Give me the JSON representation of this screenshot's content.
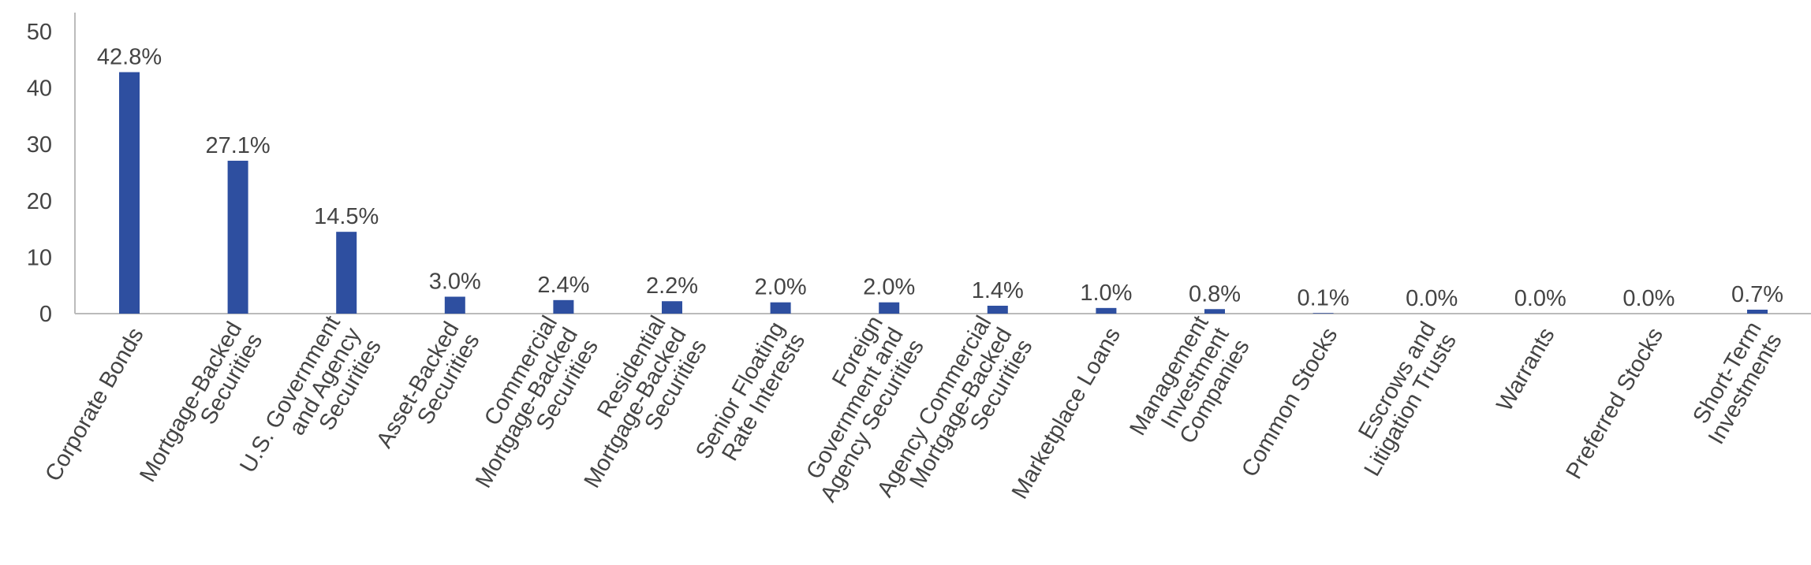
{
  "chart_data": {
    "type": "bar",
    "categories": [
      "Corporate Bonds",
      "Mortgage-Backed\nSecurities",
      "U.S. Government\nand Agency\nSecurities",
      "Asset-Backed\nSecurities",
      "Commercial\nMortgage-Backed\nSecurities",
      "Residential\nMortgage-Backed\nSecurities",
      "Senior Floating\nRate Interests",
      "Foreign\nGovernment and\nAgency Securities",
      "Agency Commercial\nMortgage-Backed\nSecurities",
      "Marketplace Loans",
      "Management\nInvestment\nCompanies",
      "Common Stocks",
      "Escrows and\nLitigation Trusts",
      "Warrants",
      "Preferred Stocks",
      "Short-Term\nInvestments"
    ],
    "values": [
      42.8,
      27.1,
      14.5,
      3.0,
      2.4,
      2.2,
      2.0,
      2.0,
      1.4,
      1.0,
      0.8,
      0.1,
      0.0,
      0.0,
      0.0,
      0.7
    ],
    "value_labels": [
      "42.8%",
      "27.1%",
      "14.5%",
      "3.0%",
      "2.4%",
      "2.2%",
      "2.0%",
      "2.0%",
      "1.4%",
      "1.0%",
      "0.8%",
      "0.1%",
      "0.0%",
      "0.0%",
      "0.0%",
      "0.7%"
    ],
    "color": "#2e4fa0",
    "ylim": [
      0,
      50
    ],
    "yticks": [
      0,
      10,
      20,
      30,
      40,
      50
    ],
    "grid": false
  }
}
